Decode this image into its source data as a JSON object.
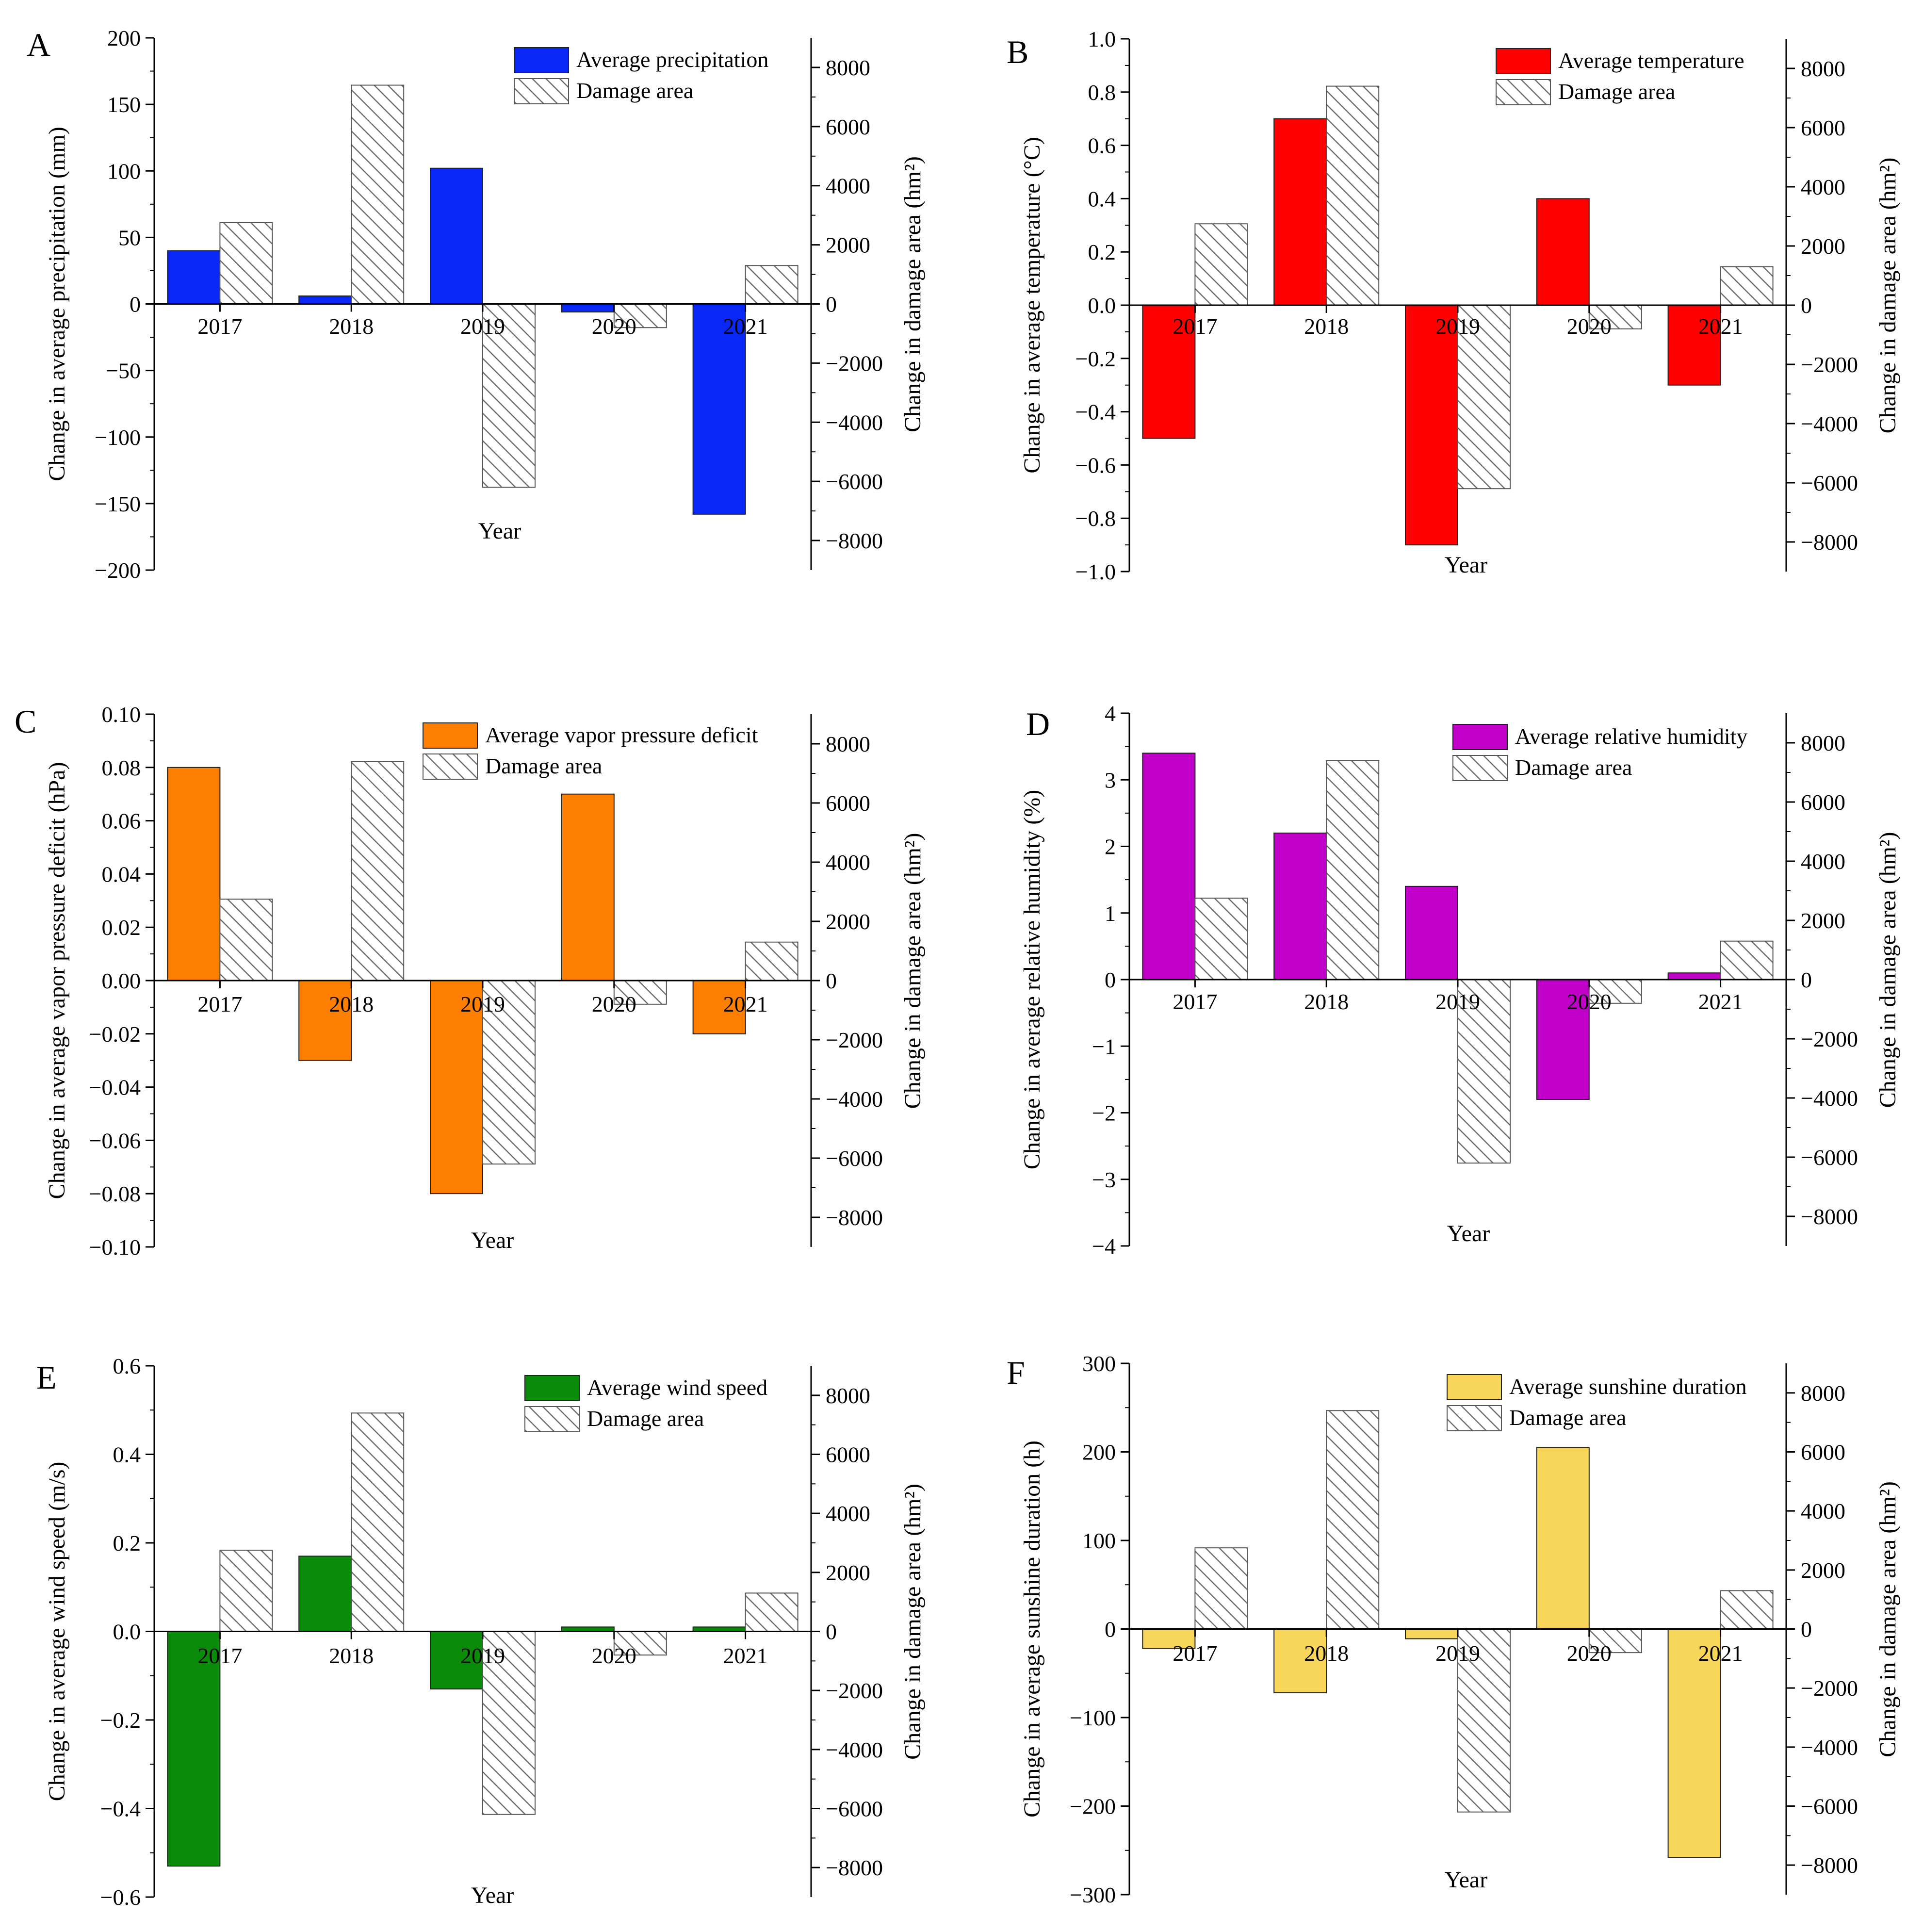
{
  "chart_data": [
    {
      "type": "bar",
      "panel_label": "A",
      "title": "",
      "categories": [
        "2017",
        "2018",
        "2019",
        "2020",
        "2021"
      ],
      "xlabel": "Year",
      "ylabel": "Change in average precipitation (mm)",
      "y2label": "Change in damage area (hm²)",
      "ylim": [
        -200,
        200
      ],
      "yticks": [
        -200,
        -150,
        -100,
        -50,
        0,
        50,
        100,
        150,
        200
      ],
      "ytick_labels": [
        "−200",
        "−150",
        "−100",
        "−50",
        "0",
        "50",
        "100",
        "150",
        "200"
      ],
      "y2lim": [
        -9000,
        9000
      ],
      "y2ticks": [
        -8000,
        -6000,
        -4000,
        -2000,
        0,
        2000,
        4000,
        6000,
        8000
      ],
      "y2tick_labels": [
        "−8000",
        "−6000",
        "−4000",
        "−2000",
        "0",
        "2000",
        "4000",
        "6000",
        "8000"
      ],
      "legend_position": "top-right",
      "series": [
        {
          "name": "Average precipitation",
          "axis": "left",
          "color": "#0a28f5",
          "pattern": "solid",
          "values": [
            40,
            6,
            102,
            -6,
            -158
          ]
        },
        {
          "name": "Damage area",
          "axis": "right",
          "color": "#ffffff",
          "pattern": "hatched",
          "values": [
            2750,
            7400,
            -6200,
            -800,
            1300
          ]
        }
      ]
    },
    {
      "type": "bar",
      "panel_label": "B",
      "title": "",
      "categories": [
        "2017",
        "2018",
        "2019",
        "2020",
        "2021"
      ],
      "xlabel": "Year",
      "ylabel": "Change in average temperature (°C)",
      "y2label": "Change in damage area (hm²)",
      "ylim": [
        -1.0,
        1.0
      ],
      "yticks": [
        -1.0,
        -0.8,
        -0.6,
        -0.4,
        -0.2,
        0.0,
        0.2,
        0.4,
        0.6,
        0.8,
        1.0
      ],
      "ytick_labels": [
        "−1.0",
        "−0.8",
        "−0.6",
        "−0.4",
        "−0.2",
        "0.0",
        "0.2",
        "0.4",
        "0.6",
        "0.8",
        "1.0"
      ],
      "y2lim": [
        -9000,
        9000
      ],
      "y2ticks": [
        -8000,
        -6000,
        -4000,
        -2000,
        0,
        2000,
        4000,
        6000,
        8000
      ],
      "y2tick_labels": [
        "−8000",
        "−6000",
        "−4000",
        "−2000",
        "0",
        "2000",
        "4000",
        "6000",
        "8000"
      ],
      "legend_position": "top-right",
      "series": [
        {
          "name": "Average temperature",
          "axis": "left",
          "color": "#ff0000",
          "pattern": "solid",
          "values": [
            -0.5,
            0.7,
            -0.9,
            0.4,
            -0.3
          ]
        },
        {
          "name": "Damage area",
          "axis": "right",
          "color": "#ffffff",
          "pattern": "hatched",
          "values": [
            2750,
            7400,
            -6200,
            -800,
            1300
          ]
        }
      ]
    },
    {
      "type": "bar",
      "panel_label": "C",
      "title": "",
      "categories": [
        "2017",
        "2018",
        "2019",
        "2020",
        "2021"
      ],
      "xlabel": "Year",
      "ylabel": "Change in average vapor pressure deficit (hPa)",
      "y2label": "Change in damage area (hm²)",
      "ylim": [
        -0.1,
        0.1
      ],
      "yticks": [
        -0.1,
        -0.08,
        -0.06,
        -0.04,
        -0.02,
        0.0,
        0.02,
        0.04,
        0.06,
        0.08,
        0.1
      ],
      "ytick_labels": [
        "−0.10",
        "−0.08",
        "−0.06",
        "−0.04",
        "−0.02",
        "0.00",
        "0.02",
        "0.04",
        "0.06",
        "0.08",
        "0.10"
      ],
      "y2lim": [
        -9000,
        9000
      ],
      "y2ticks": [
        -8000,
        -6000,
        -4000,
        -2000,
        0,
        2000,
        4000,
        6000,
        8000
      ],
      "y2tick_labels": [
        "−8000",
        "−6000",
        "−4000",
        "−2000",
        "0",
        "2000",
        "4000",
        "6000",
        "8000"
      ],
      "legend_position": "top-right",
      "series": [
        {
          "name": "Average vapor pressure deficit",
          "axis": "left",
          "color": "#ff8000",
          "pattern": "solid",
          "values": [
            0.08,
            -0.03,
            -0.08,
            0.07,
            -0.02
          ]
        },
        {
          "name": "Damage area",
          "axis": "right",
          "color": "#ffffff",
          "pattern": "hatched",
          "values": [
            2750,
            7400,
            -6200,
            -800,
            1300
          ]
        }
      ]
    },
    {
      "type": "bar",
      "panel_label": "D",
      "title": "",
      "categories": [
        "2017",
        "2018",
        "2019",
        "2020",
        "2021"
      ],
      "xlabel": "Year",
      "ylabel": "Change in average relative humidity (%)",
      "y2label": "Change in damage area (hm²)",
      "ylim": [
        -4,
        4
      ],
      "yticks": [
        -4,
        -3,
        -2,
        -1,
        0,
        1,
        2,
        3,
        4
      ],
      "ytick_labels": [
        "−4",
        "−3",
        "−2",
        "−1",
        "0",
        "1",
        "2",
        "3",
        "4"
      ],
      "y2lim": [
        -9000,
        9000
      ],
      "y2ticks": [
        -8000,
        -6000,
        -4000,
        -2000,
        0,
        2000,
        4000,
        6000,
        8000
      ],
      "y2tick_labels": [
        "−8000",
        "−6000",
        "−4000",
        "−2000",
        "0",
        "2000",
        "4000",
        "6000",
        "8000"
      ],
      "legend_position": "top-right",
      "series": [
        {
          "name": "Average relative humidity",
          "axis": "left",
          "color": "#c000c8",
          "pattern": "solid",
          "values": [
            3.4,
            2.2,
            1.4,
            -1.8,
            0.1
          ]
        },
        {
          "name": "Damage area",
          "axis": "right",
          "color": "#ffffff",
          "pattern": "hatched",
          "values": [
            2750,
            7400,
            -6200,
            -800,
            1300
          ]
        }
      ]
    },
    {
      "type": "bar",
      "panel_label": "E",
      "title": "",
      "categories": [
        "2017",
        "2018",
        "2019",
        "2020",
        "2021"
      ],
      "xlabel": "Year",
      "ylabel": "Change in average wind speed (m/s)",
      "y2label": "Change in damage area (hm²)",
      "ylim": [
        -0.6,
        0.6
      ],
      "yticks": [
        -0.6,
        -0.4,
        -0.2,
        0.0,
        0.2,
        0.4,
        0.6
      ],
      "ytick_labels": [
        "−0.6",
        "−0.4",
        "−0.2",
        "0.0",
        "0.2",
        "0.4",
        "0.6"
      ],
      "y2lim": [
        -9000,
        9000
      ],
      "y2ticks": [
        -8000,
        -6000,
        -4000,
        -2000,
        0,
        2000,
        4000,
        6000,
        8000
      ],
      "y2tick_labels": [
        "−8000",
        "−6000",
        "−4000",
        "−2000",
        "0",
        "2000",
        "4000",
        "6000",
        "8000"
      ],
      "legend_position": "top-right",
      "series": [
        {
          "name": "Average wind speed",
          "axis": "left",
          "color": "#0a8c0a",
          "pattern": "solid",
          "values": [
            -0.53,
            0.17,
            -0.13,
            0.01,
            0.01
          ]
        },
        {
          "name": "Damage area",
          "axis": "right",
          "color": "#ffffff",
          "pattern": "hatched",
          "values": [
            2750,
            7400,
            -6200,
            -800,
            1300
          ]
        }
      ]
    },
    {
      "type": "bar",
      "panel_label": "F",
      "title": "",
      "categories": [
        "2017",
        "2018",
        "2019",
        "2020",
        "2021"
      ],
      "xlabel": "Year",
      "ylabel": "Change in average sunshine duration (h)",
      "y2label": "Change in damage area (hm²)",
      "ylim": [
        -300,
        300
      ],
      "yticks": [
        -300,
        -200,
        -100,
        0,
        100,
        200,
        300
      ],
      "ytick_labels": [
        "−300",
        "−200",
        "−100",
        "0",
        "100",
        "200",
        "300"
      ],
      "y2lim": [
        -9000,
        9000
      ],
      "y2ticks": [
        -8000,
        -6000,
        -4000,
        -2000,
        0,
        2000,
        4000,
        6000,
        8000
      ],
      "y2tick_labels": [
        "−8000",
        "−6000",
        "−4000",
        "−2000",
        "0",
        "2000",
        "4000",
        "6000",
        "8000"
      ],
      "legend_position": "top-right",
      "series": [
        {
          "name": "Average sunshine duration",
          "axis": "left",
          "color": "#f8d65a",
          "pattern": "solid",
          "values": [
            -22,
            -72,
            -11,
            205,
            -258
          ]
        },
        {
          "name": "Damage area",
          "axis": "right",
          "color": "#ffffff",
          "pattern": "hatched",
          "values": [
            2750,
            7400,
            -6200,
            -800,
            1300
          ]
        }
      ]
    }
  ]
}
